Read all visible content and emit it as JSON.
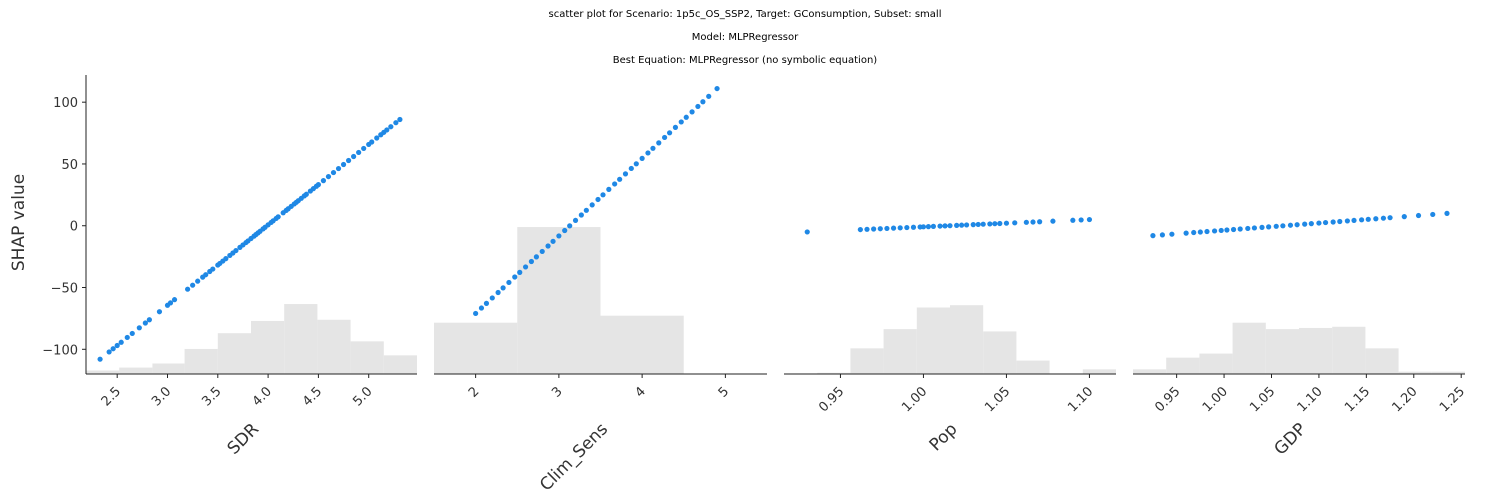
{
  "titles": {
    "line1": "scatter plot for Scenario: 1p5c_OS_SSP2, Target: GConsumption, Subset: small",
    "line2": "Model: MLPRegressor",
    "line3": "Best Equation: MLPRegressor (no symbolic equation)"
  },
  "colors": {
    "points": "#1f88e5",
    "histogram": "#e5e5e5",
    "axis": "#222222"
  },
  "chart_data": [
    {
      "type": "scatter",
      "xlabel": "SDR",
      "ylabel": "SHAP value",
      "ylim": [
        -120,
        122
      ],
      "xlim": [
        2.19,
        5.48
      ],
      "yticks": [
        100,
        50,
        0,
        -50,
        -100
      ],
      "ytick_labels": [
        "100",
        "50",
        "0",
        "−50",
        "−100"
      ],
      "xticks": [
        2.5,
        3.0,
        3.5,
        4.0,
        4.5,
        5.0
      ],
      "xtick_labels": [
        "2.5",
        "3.0",
        "3.5",
        "4.0",
        "4.5",
        "5.0"
      ],
      "line_fit": {
        "x0": 2.33,
        "y0": -108,
        "x1": 5.31,
        "y1": 86
      },
      "point_x": [
        2.33,
        2.42,
        2.46,
        2.5,
        2.54,
        2.6,
        2.65,
        2.72,
        2.78,
        2.82,
        2.92,
        3.0,
        3.03,
        3.07,
        3.2,
        3.25,
        3.3,
        3.35,
        3.38,
        3.42,
        3.45,
        3.5,
        3.52,
        3.55,
        3.58,
        3.62,
        3.65,
        3.68,
        3.72,
        3.75,
        3.78,
        3.8,
        3.83,
        3.86,
        3.88,
        3.9,
        3.92,
        3.95,
        3.97,
        4.0,
        4.03,
        4.05,
        4.08,
        4.1,
        4.15,
        4.18,
        4.2,
        4.23,
        4.26,
        4.28,
        4.3,
        4.33,
        4.36,
        4.38,
        4.42,
        4.45,
        4.48,
        4.5,
        4.55,
        4.6,
        4.65,
        4.7,
        4.75,
        4.8,
        4.85,
        4.9,
        4.95,
        5.0,
        5.03,
        5.08,
        5.12,
        5.15,
        5.18,
        5.22,
        5.27,
        5.31
      ],
      "histogram": {
        "edges": [
          2.19,
          2.52,
          2.85,
          3.17,
          3.5,
          3.83,
          4.16,
          4.49,
          4.82,
          5.15,
          5.48
        ],
        "heights": [
          0.03,
          0.055,
          0.09,
          0.215,
          0.35,
          0.455,
          0.6,
          0.465,
          0.28,
          0.16
        ]
      }
    },
    {
      "type": "scatter",
      "xlabel": "Clim_Sens",
      "ylim": [
        -120,
        122
      ],
      "xlim": [
        1.5,
        5.5
      ],
      "xticks": [
        2,
        3,
        4,
        5
      ],
      "xtick_labels": [
        "2",
        "3",
        "4",
        "5"
      ],
      "line_fit": {
        "x0": 2.0,
        "y0": -71,
        "x1": 4.9,
        "y1": 111
      },
      "point_x": [
        2.0,
        2.07,
        2.13,
        2.2,
        2.27,
        2.33,
        2.4,
        2.47,
        2.53,
        2.6,
        2.67,
        2.73,
        2.8,
        2.87,
        2.93,
        3.0,
        3.07,
        3.13,
        3.2,
        3.27,
        3.33,
        3.4,
        3.47,
        3.53,
        3.6,
        3.67,
        3.73,
        3.8,
        3.87,
        3.93,
        4.0,
        4.07,
        4.13,
        4.2,
        4.27,
        4.33,
        4.4,
        4.47,
        4.53,
        4.6,
        4.67,
        4.73,
        4.8,
        4.9
      ],
      "histogram": {
        "edges": [
          1.5,
          2.5,
          3.5,
          4.5,
          5.5
        ],
        "heights": [
          0.44,
          1.26,
          0.5,
          0.0
        ]
      }
    },
    {
      "type": "scatter",
      "xlabel": "Pop",
      "ylim": [
        -120,
        122
      ],
      "xlim": [
        0.916,
        1.116
      ],
      "xticks": [
        0.95,
        1.0,
        1.05,
        1.1
      ],
      "xtick_labels": [
        "0.95",
        "1.00",
        "1.05",
        "1.10"
      ],
      "line_fit": {
        "x0": 0.93,
        "y0": -5,
        "x1": 1.1,
        "y1": 5
      },
      "point_x": [
        0.93,
        0.962,
        0.966,
        0.97,
        0.974,
        0.978,
        0.982,
        0.986,
        0.99,
        0.994,
        0.998,
        1.0,
        1.003,
        1.006,
        1.01,
        1.013,
        1.016,
        1.02,
        1.023,
        1.026,
        1.03,
        1.033,
        1.036,
        1.04,
        1.043,
        1.046,
        1.05,
        1.055,
        1.062,
        1.066,
        1.07,
        1.078,
        1.09,
        1.095,
        1.1
      ],
      "histogram": {
        "edges": [
          0.916,
          0.936,
          0.956,
          0.976,
          0.996,
          1.016,
          1.036,
          1.056,
          1.076,
          1.096,
          1.116
        ],
        "heights": [
          0.005,
          0.01,
          0.22,
          0.385,
          0.57,
          0.59,
          0.365,
          0.115,
          0.005,
          0.04
        ]
      }
    },
    {
      "type": "scatter",
      "xlabel": "GDP",
      "ylim": [
        -120,
        122
      ],
      "xlim": [
        0.904,
        1.254
      ],
      "xticks": [
        0.95,
        1.0,
        1.05,
        1.1,
        1.15,
        1.2,
        1.25
      ],
      "xtick_labels": [
        "0.95",
        "1.00",
        "1.05",
        "1.10",
        "1.15",
        "1.20",
        "1.25"
      ],
      "line_fit": {
        "x0": 0.925,
        "y0": -8,
        "x1": 1.235,
        "y1": 10
      },
      "point_x": [
        0.925,
        0.935,
        0.945,
        0.96,
        0.968,
        0.975,
        0.982,
        0.99,
        0.997,
        1.003,
        1.01,
        1.017,
        1.025,
        1.032,
        1.04,
        1.047,
        1.055,
        1.062,
        1.07,
        1.077,
        1.085,
        1.092,
        1.1,
        1.107,
        1.115,
        1.122,
        1.13,
        1.137,
        1.145,
        1.152,
        1.16,
        1.168,
        1.175,
        1.19,
        1.205,
        1.22,
        1.235
      ],
      "histogram": {
        "edges": [
          0.904,
          0.939,
          0.974,
          1.009,
          1.044,
          1.079,
          1.114,
          1.149,
          1.184,
          1.219,
          1.254
        ],
        "heights": [
          0.04,
          0.14,
          0.175,
          0.44,
          0.385,
          0.395,
          0.405,
          0.22,
          0.02,
          0.02
        ]
      }
    }
  ]
}
